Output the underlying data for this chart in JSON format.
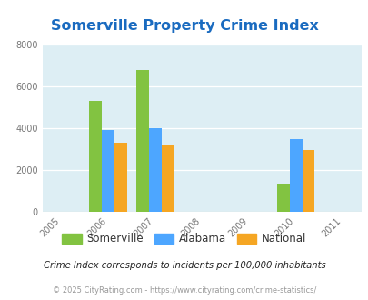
{
  "title": "Somerville Property Crime Index",
  "all_years": [
    2005,
    2006,
    2007,
    2008,
    2009,
    2010,
    2011
  ],
  "data_years": [
    2006,
    2007,
    2010
  ],
  "somerville": [
    5300,
    6800,
    1350
  ],
  "alabama": [
    3900,
    4000,
    3500
  ],
  "national": [
    3300,
    3200,
    2950
  ],
  "somerville_color": "#82c341",
  "alabama_color": "#4da6ff",
  "national_color": "#f5a623",
  "bg_color": "#ddeef4",
  "ylim": [
    0,
    8000
  ],
  "yticks": [
    0,
    2000,
    4000,
    6000,
    8000
  ],
  "title_color": "#1a6bc0",
  "title_fontsize": 11.5,
  "legend_label_somerville": "Somerville",
  "legend_label_alabama": "Alabama",
  "legend_label_national": "National",
  "footnote1": "Crime Index corresponds to incidents per 100,000 inhabitants",
  "footnote2": "© 2025 CityRating.com - https://www.cityrating.com/crime-statistics/",
  "bar_width": 0.27
}
